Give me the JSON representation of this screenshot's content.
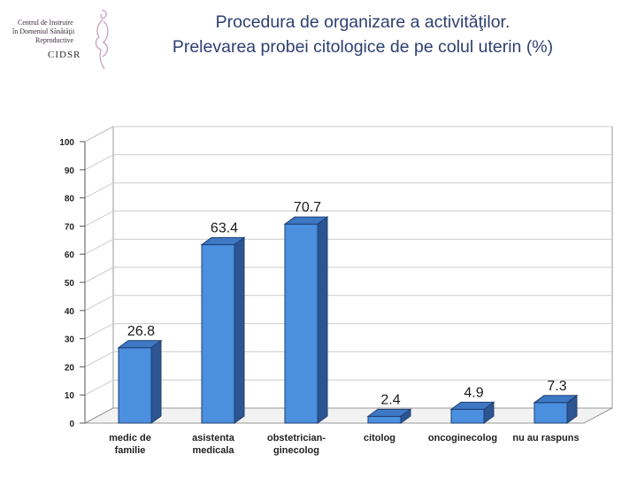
{
  "logo": {
    "lines": [
      "Centrul de Instruire",
      "în Domeniul Sănătăţii",
      "Reproductive"
    ],
    "acronym": "CIDSR"
  },
  "title_line1": "Procedura de organizare a activităţilor.",
  "title_line2": "Prelevarea probei citologice de pe colul uterin (%)",
  "colors": {
    "bar_front": "#4b8fdf",
    "bar_side": "#2c5592",
    "bar_top": "#3d78c4",
    "title": "#2e3f72"
  },
  "chart_data": {
    "type": "bar",
    "categories": [
      [
        "medic de",
        "familie"
      ],
      [
        "asistenta",
        "medicala"
      ],
      [
        "obstetrician-",
        "ginecolog"
      ],
      [
        "citolog"
      ],
      [
        "oncoginecolog"
      ],
      [
        "nu au raspuns"
      ]
    ],
    "values": [
      26.8,
      63.4,
      70.7,
      2.4,
      4.9,
      7.3
    ],
    "value_labels": [
      "26.8",
      "63.4",
      "70.7",
      "2.4",
      "4.9",
      "7.3"
    ],
    "yticks": [
      0,
      10,
      20,
      30,
      40,
      50,
      60,
      70,
      80,
      90,
      100
    ],
    "ylim": [
      0,
      100
    ],
    "grid": true,
    "style": "3d"
  }
}
